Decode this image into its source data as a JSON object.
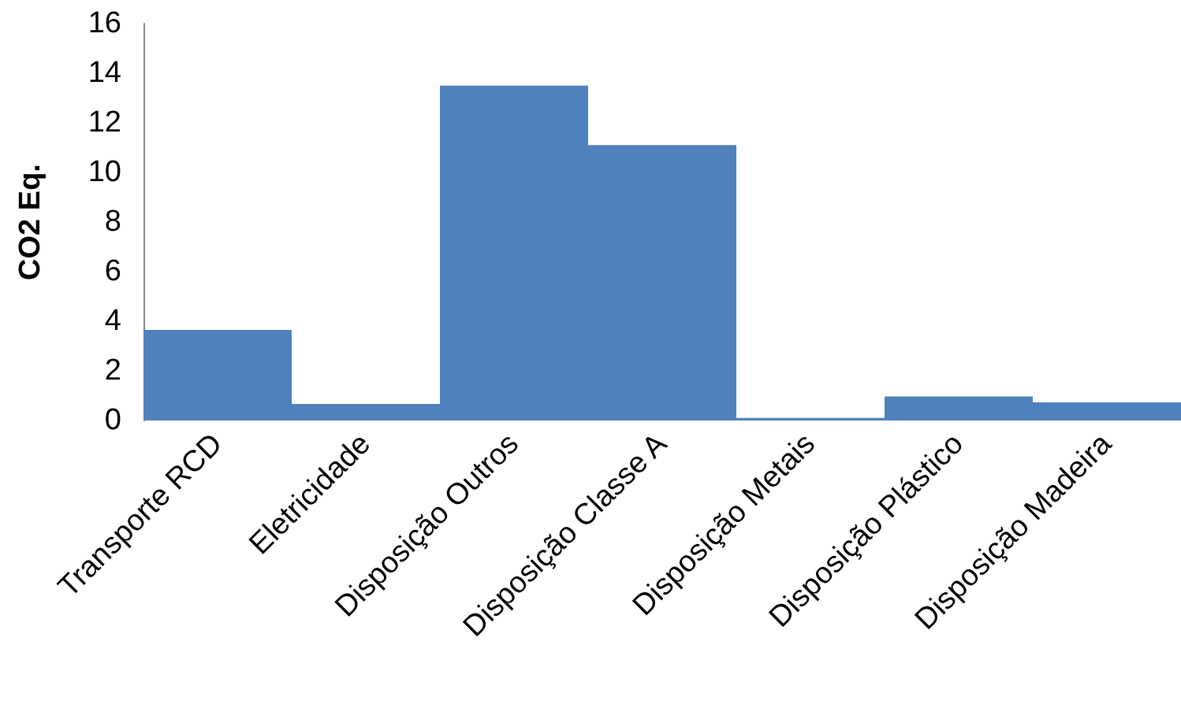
{
  "chart_data": {
    "type": "bar",
    "ylabel": "CO2 Eq.",
    "categories": [
      "Transporte RCD",
      "Eletricidade",
      "Disposição Outros",
      "Disposição Classe A",
      "Disposição Metais",
      "Disposição Plástico",
      "Disposição Madeira"
    ],
    "values": [
      3.65,
      0.67,
      13.5,
      11.1,
      0.1,
      0.97,
      0.73
    ],
    "color": "#4f81bd",
    "ylim": [
      0,
      16
    ],
    "yticks": [
      0,
      2,
      4,
      6,
      8,
      10,
      12,
      14,
      16
    ],
    "grid": false
  }
}
